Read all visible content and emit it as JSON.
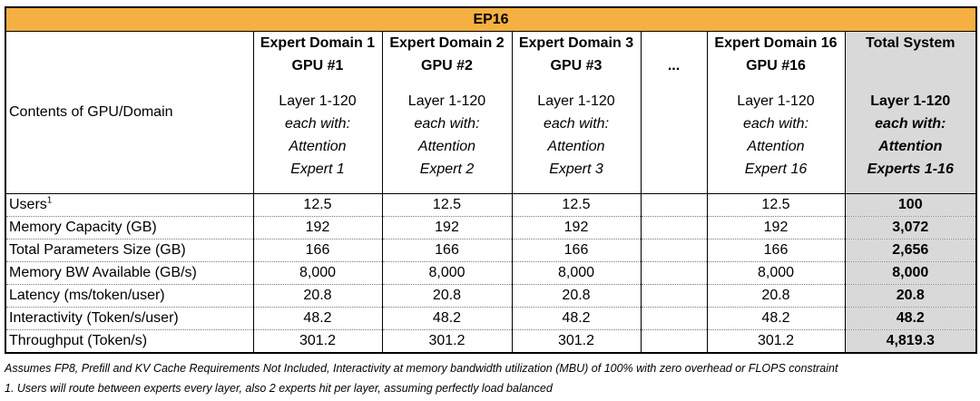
{
  "title": "EP16",
  "header": {
    "row_label": "Contents of GPU/Domain",
    "ellipsis": "...",
    "columns": [
      {
        "name": "Expert Domain 1",
        "gpu": "GPU #1",
        "lines": [
          "Layer 1-120",
          "each with:",
          "Attention",
          "Expert 1"
        ]
      },
      {
        "name": "Expert Domain 2",
        "gpu": "GPU #2",
        "lines": [
          "Layer 1-120",
          "each with:",
          "Attention",
          "Expert 2"
        ]
      },
      {
        "name": "Expert Domain 3",
        "gpu": "GPU #3",
        "lines": [
          "Layer 1-120",
          "each with:",
          "Attention",
          "Expert 3"
        ]
      },
      {
        "name": "Expert Domain 16",
        "gpu": "GPU #16",
        "lines": [
          "Layer 1-120",
          "each with:",
          "Attention",
          "Expert 16"
        ]
      },
      {
        "name": "Total System",
        "lines": [
          "Layer 1-120",
          "each with:",
          "Attention",
          "Experts 1-16"
        ]
      }
    ]
  },
  "rows": [
    {
      "label": "Users",
      "sup": "1",
      "values": [
        "12.5",
        "12.5",
        "12.5",
        "12.5",
        "100"
      ]
    },
    {
      "label": "Memory Capacity (GB)",
      "values": [
        "192",
        "192",
        "192",
        "192",
        "3,072"
      ]
    },
    {
      "label": "Total Parameters Size  (GB)",
      "values": [
        "166",
        "166",
        "166",
        "166",
        "2,656"
      ]
    },
    {
      "label": "Memory BW Available (GB/s)",
      "values": [
        "8,000",
        "8,000",
        "8,000",
        "8,000",
        "8,000"
      ]
    },
    {
      "label": "Latency (ms/token/user)",
      "values": [
        "20.8",
        "20.8",
        "20.8",
        "20.8",
        "20.8"
      ]
    },
    {
      "label": "Interactivity (Token/s/user)",
      "values": [
        "48.2",
        "48.2",
        "48.2",
        "48.2",
        "48.2"
      ]
    },
    {
      "label": "Throughput (Token/s)",
      "values": [
        "301.2",
        "301.2",
        "301.2",
        "301.2",
        "4,819.3"
      ]
    }
  ],
  "notes": [
    "Assumes FP8, Prefill and KV Cache Requirements Not Included, Interactivity at memory bandwidth utilization (MBU) of 100% with zero overhead or FLOPS constraint",
    "1. Users will route between experts every layer, also 2 experts hit per layer, assuming perfectly load balanced"
  ]
}
